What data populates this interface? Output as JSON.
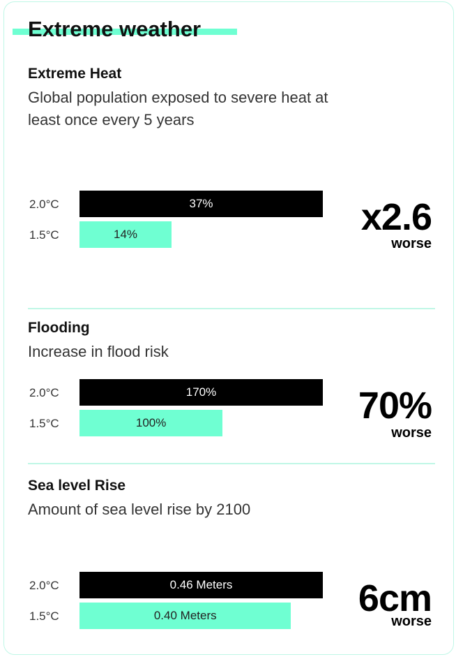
{
  "title": "Extreme weather",
  "chart_data": [
    {
      "type": "bar",
      "title": "Extreme Heat",
      "subtitle": "Global population exposed to severe heat at least once every 5 years",
      "categories": [
        "2.0°C",
        "1.5°C"
      ],
      "values": [
        37,
        14
      ],
      "value_labels": [
        "37%",
        "14%"
      ],
      "colors": [
        "#000000",
        "#6fffd2"
      ],
      "annotation": "x2.6",
      "annotation_note": "worse"
    },
    {
      "type": "bar",
      "title": "Flooding",
      "subtitle": "Increase in flood risk",
      "categories": [
        "2.0°C",
        "1.5°C"
      ],
      "values": [
        170,
        100
      ],
      "value_labels": [
        "170%",
        "100%"
      ],
      "colors": [
        "#000000",
        "#6fffd2"
      ],
      "annotation": "70%",
      "annotation_note": "worse"
    },
    {
      "type": "bar",
      "title": "Sea level Rise",
      "subtitle": "Amount of sea level rise by 2100",
      "categories": [
        "2.0°C",
        "1.5°C"
      ],
      "values": [
        0.46,
        0.4
      ],
      "value_labels": [
        "0.46 Meters",
        "0.40 Meters"
      ],
      "colors": [
        "#000000",
        "#6fffd2"
      ],
      "annotation": "6cm",
      "annotation_note": "worse"
    }
  ]
}
